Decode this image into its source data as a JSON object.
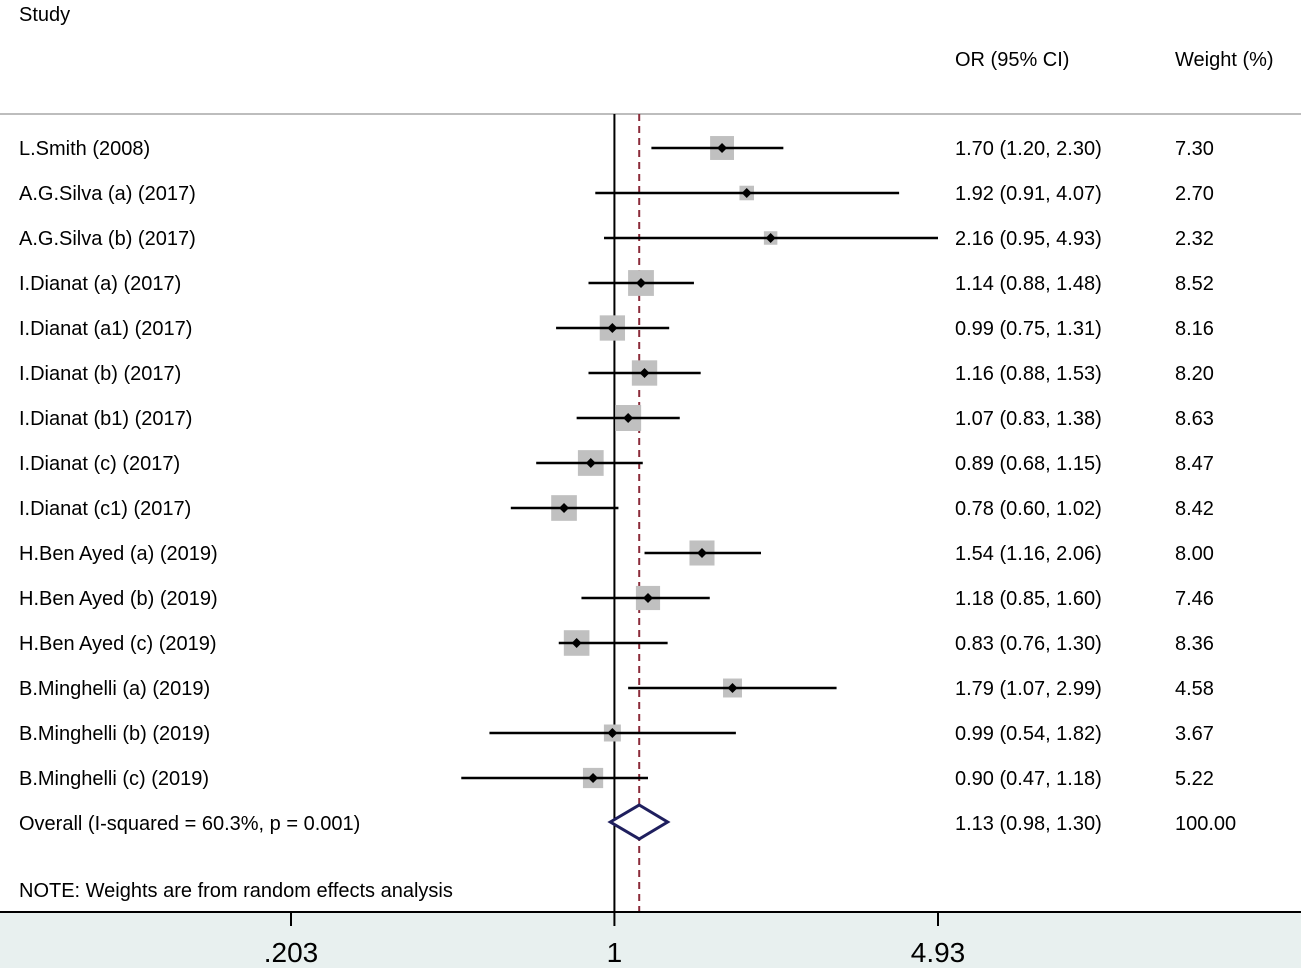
{
  "chart_data": {
    "type": "forest",
    "headers": {
      "study": "Study",
      "or": "OR (95% CI)",
      "weight": "Weight (%)"
    },
    "studies": [
      {
        "label": "L.Smith (2008)",
        "or": 1.7,
        "lo": 1.2,
        "hi": 2.3,
        "or_text": "1.70 (1.20, 2.30)",
        "weight": 7.3,
        "weight_text": "7.30"
      },
      {
        "label": "A.G.Silva (a) (2017)",
        "or": 1.92,
        "lo": 0.91,
        "hi": 4.07,
        "or_text": "1.92 (0.91, 4.07)",
        "weight": 2.7,
        "weight_text": "2.70"
      },
      {
        "label": "A.G.Silva (b) (2017)",
        "or": 2.16,
        "lo": 0.95,
        "hi": 4.93,
        "or_text": "2.16 (0.95, 4.93)",
        "weight": 2.32,
        "weight_text": "2.32"
      },
      {
        "label": "I.Dianat (a) (2017)",
        "or": 1.14,
        "lo": 0.88,
        "hi": 1.48,
        "or_text": "1.14 (0.88, 1.48)",
        "weight": 8.52,
        "weight_text": "8.52"
      },
      {
        "label": "I.Dianat (a1) (2017)",
        "or": 0.99,
        "lo": 0.75,
        "hi": 1.31,
        "or_text": "0.99 (0.75, 1.31)",
        "weight": 8.16,
        "weight_text": "8.16"
      },
      {
        "label": "I.Dianat (b) (2017)",
        "or": 1.16,
        "lo": 0.88,
        "hi": 1.53,
        "or_text": "1.16 (0.88, 1.53)",
        "weight": 8.2,
        "weight_text": "8.20"
      },
      {
        "label": "I.Dianat (b1) (2017)",
        "or": 1.07,
        "lo": 0.83,
        "hi": 1.38,
        "or_text": "1.07 (0.83, 1.38)",
        "weight": 8.63,
        "weight_text": "8.63"
      },
      {
        "label": "I.Dianat (c) (2017)",
        "or": 0.89,
        "lo": 0.68,
        "hi": 1.15,
        "or_text": "0.89 (0.68, 1.15)",
        "weight": 8.47,
        "weight_text": "8.47"
      },
      {
        "label": "I.Dianat (c1) (2017)",
        "or": 0.78,
        "lo": 0.6,
        "hi": 1.02,
        "or_text": "0.78 (0.60, 1.02)",
        "weight": 8.42,
        "weight_text": "8.42"
      },
      {
        "label": "H.Ben Ayed (a) (2019)",
        "or": 1.54,
        "lo": 1.16,
        "hi": 2.06,
        "or_text": "1.54 (1.16, 2.06)",
        "weight": 8.0,
        "weight_text": "8.00"
      },
      {
        "label": "H.Ben Ayed (b) (2019)",
        "or": 1.18,
        "lo": 0.85,
        "hi": 1.6,
        "or_text": "1.18 (0.85, 1.60)",
        "weight": 7.46,
        "weight_text": "7.46"
      },
      {
        "label": "H.Ben Ayed (c) (2019)",
        "or": 0.83,
        "lo": 0.76,
        "hi": 1.3,
        "or_text": "0.83 (0.76, 1.30)",
        "weight": 8.36,
        "weight_text": "8.36"
      },
      {
        "label": "B.Minghelli (a) (2019)",
        "or": 1.79,
        "lo": 1.07,
        "hi": 2.99,
        "or_text": "1.79 (1.07, 2.99)",
        "weight": 4.58,
        "weight_text": "4.58"
      },
      {
        "label": "B.Minghelli (b) (2019)",
        "or": 0.99,
        "lo": 0.54,
        "hi": 1.82,
        "or_text": "0.99 (0.54, 1.82)",
        "weight": 3.67,
        "weight_text": "3.67"
      },
      {
        "label": "B.Minghelli (c) (2019)",
        "or": 0.9,
        "lo": 0.47,
        "hi": 1.18,
        "or_text": "0.90 (0.47, 1.18)",
        "weight": 5.22,
        "weight_text": "5.22"
      }
    ],
    "overall": {
      "label": "Overall  (I-squared = 60.3%, p = 0.001)",
      "or": 1.13,
      "lo": 0.98,
      "hi": 1.3,
      "or_text": "1.13 (0.98, 1.30)",
      "weight_text": "100.00"
    },
    "note": "NOTE: Weights are from random effects analysis",
    "x_scale": "log",
    "x_ticks": [
      {
        "value": 0.203,
        "label": ".203"
      },
      {
        "value": 1,
        "label": "1"
      },
      {
        "value": 4.93,
        "label": "4.93"
      }
    ],
    "null_line": 1,
    "colors": {
      "box": "#c0c0c0",
      "point": "#000000",
      "overall_diamond": "#1f1f5e",
      "overall_line": "#8b2b3a",
      "axis_band": "#e8f0ef",
      "separator": "#bdbdbd"
    }
  }
}
